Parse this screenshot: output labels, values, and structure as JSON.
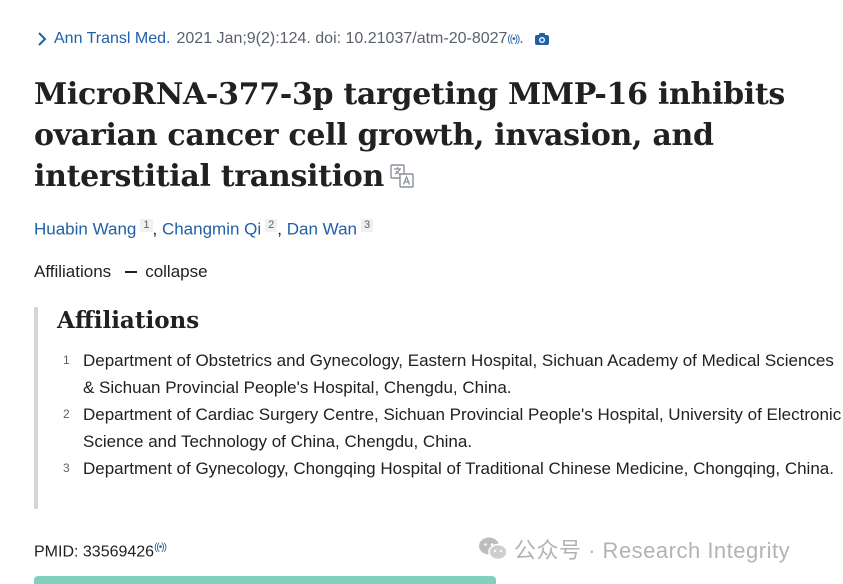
{
  "citation": {
    "journal": "Ann Transl Med.",
    "details": "2021 Jan;9(2):124. doi: 10.21037/atm-20-8027",
    "ref_icon": "((•))",
    "trailing": "."
  },
  "title": "MicroRNA-377-3p targeting MMP-16 inhibits ovarian cancer cell growth, invasion, and interstitial transition",
  "authors": [
    {
      "name": "Huabin Wang",
      "ref": "1"
    },
    {
      "name": "Changmin Qi",
      "ref": "2"
    },
    {
      "name": "Dan Wan",
      "ref": "3"
    }
  ],
  "author_separator": ", ",
  "affiliations_toggle": {
    "label": "Affiliations",
    "action": "collapse"
  },
  "affiliations": {
    "heading": "Affiliations",
    "items": [
      {
        "num": "1",
        "text": "Department of Obstetrics and Gynecology, Eastern Hospital, Sichuan Academy of Medical Sciences & Sichuan Provincial People's Hospital, Chengdu, China."
      },
      {
        "num": "2",
        "text": "Department of Cardiac Surgery Centre, Sichuan Provincial People's Hospital, University of Electronic Science and Technology of China, Chengdu, China."
      },
      {
        "num": "3",
        "text": "Department of Gynecology, Chongqing Hospital of Traditional Chinese Medicine, Chongqing, China."
      }
    ]
  },
  "pmid": {
    "label": "PMID: 33569426",
    "ref_icon": "((•))"
  },
  "watermark": "公众号 · Research Integrity",
  "colors": {
    "link": "#2060a8",
    "text": "#212121",
    "muted": "#5b616b",
    "accent_bar": "#7fd0bd"
  }
}
